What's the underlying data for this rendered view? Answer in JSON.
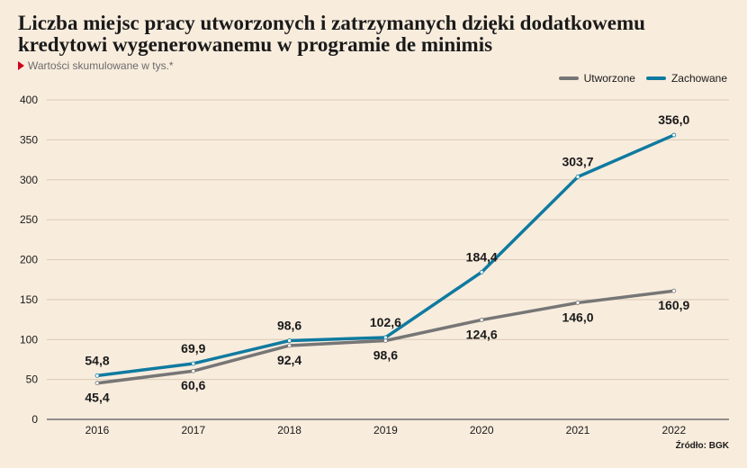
{
  "title": "Liczba miejsc pracy utworzonych i zatrzymanych dzięki dodatkowemu kredytowi wygenerowanemu w programie de minimis",
  "subtitle": "Wartości skumulowane w tys.*",
  "source": "Źródło: BGK",
  "colors": {
    "background": "#f8ecdd",
    "accent": "#d0021b"
  },
  "chart_data": {
    "type": "line",
    "title": "Liczba miejsc pracy utworzonych i zatrzymanych dzięki dodatkowemu kredytowi wygenerowanemu w programie de minimis",
    "subtitle": "Wartości skumulowane w tys.*",
    "x": [
      "2016",
      "2017",
      "2018",
      "2019",
      "2020",
      "2021",
      "2022"
    ],
    "ylim": [
      0,
      400
    ],
    "yticks": [
      "0",
      "50",
      "100",
      "150",
      "200",
      "250",
      "300",
      "350",
      "400"
    ],
    "grid": true,
    "legend_position": "top-right",
    "series": [
      {
        "name": "Utworzone",
        "color": "#767676",
        "values": [
          45.4,
          60.6,
          92.4,
          98.6,
          124.6,
          146.0,
          160.9
        ],
        "labels": [
          "45,4",
          "60,6",
          "92,4",
          "98,6",
          "124,6",
          "146,0",
          "160,9"
        ]
      },
      {
        "name": "Zachowane",
        "color": "#0f7aa0",
        "values": [
          54.8,
          69.9,
          98.6,
          102.6,
          184.4,
          303.7,
          356.0
        ],
        "labels": [
          "54,8",
          "69,9",
          "98,6",
          "102,6",
          "184,4",
          "303,7",
          "356,0"
        ]
      }
    ]
  }
}
